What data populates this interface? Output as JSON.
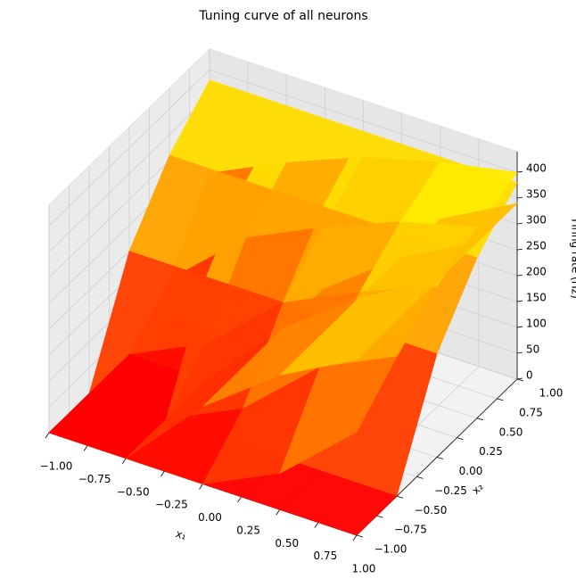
{
  "chart_data": {
    "type": "surface",
    "title": "Tuning curve of all neurons",
    "xlabel": "x₁",
    "ylabel": "x₂",
    "zlabel": "Firing rate (Hz)",
    "x": [
      -1,
      -0.5,
      0,
      0.5,
      1
    ],
    "y": [
      -1,
      -0.5,
      0,
      0.5,
      1
    ],
    "colormap": "autumn",
    "series": [
      {
        "z": [
          [
            0,
            0,
            200,
            310,
            380
          ],
          [
            0,
            0,
            200,
            310,
            380
          ],
          [
            0,
            0,
            200,
            310,
            380
          ],
          [
            0,
            0,
            200,
            310,
            380
          ],
          [
            0,
            0,
            200,
            310,
            380
          ]
        ]
      },
      {
        "z": [
          [
            0,
            0,
            0,
            70,
            200
          ],
          [
            0,
            0,
            70,
            200,
            270
          ],
          [
            0,
            70,
            200,
            270,
            330
          ],
          [
            70,
            200,
            270,
            330,
            370
          ],
          [
            200,
            270,
            330,
            370,
            400
          ]
        ]
      },
      {
        "z": [
          [
            0,
            0,
            0,
            0,
            0
          ],
          [
            0,
            0,
            0,
            0,
            0
          ],
          [
            150,
            150,
            150,
            150,
            150
          ],
          [
            260,
            260,
            260,
            260,
            260
          ],
          [
            340,
            340,
            340,
            340,
            340
          ]
        ]
      }
    ],
    "xlim": [
      -1,
      1
    ],
    "ylim": [
      -1,
      1
    ],
    "zlim": [
      0,
      440
    ],
    "xticks": [
      {
        "value": -1,
        "label": "−1.00"
      },
      {
        "value": -0.75,
        "label": "−0.75"
      },
      {
        "value": -0.5,
        "label": "−0.50"
      },
      {
        "value": -0.25,
        "label": "−0.25"
      },
      {
        "value": 0,
        "label": "0.00"
      },
      {
        "value": 0.25,
        "label": "0.25"
      },
      {
        "value": 0.5,
        "label": "0.50"
      },
      {
        "value": 0.75,
        "label": "0.75"
      },
      {
        "value": 1,
        "label": "1.00"
      }
    ],
    "yticks": [
      {
        "value": -1,
        "label": "−1.00"
      },
      {
        "value": -0.75,
        "label": "−0.75"
      },
      {
        "value": -0.5,
        "label": "−0.50"
      },
      {
        "value": -0.25,
        "label": "−0.25"
      },
      {
        "value": 0,
        "label": "0.00"
      },
      {
        "value": 0.25,
        "label": "0.25"
      },
      {
        "value": 0.5,
        "label": "0.50"
      },
      {
        "value": 0.75,
        "label": "0.75"
      },
      {
        "value": 1,
        "label": "1.00"
      }
    ],
    "zticks": [
      0,
      50,
      100,
      150,
      200,
      250,
      300,
      350,
      400
    ],
    "grid": true
  }
}
